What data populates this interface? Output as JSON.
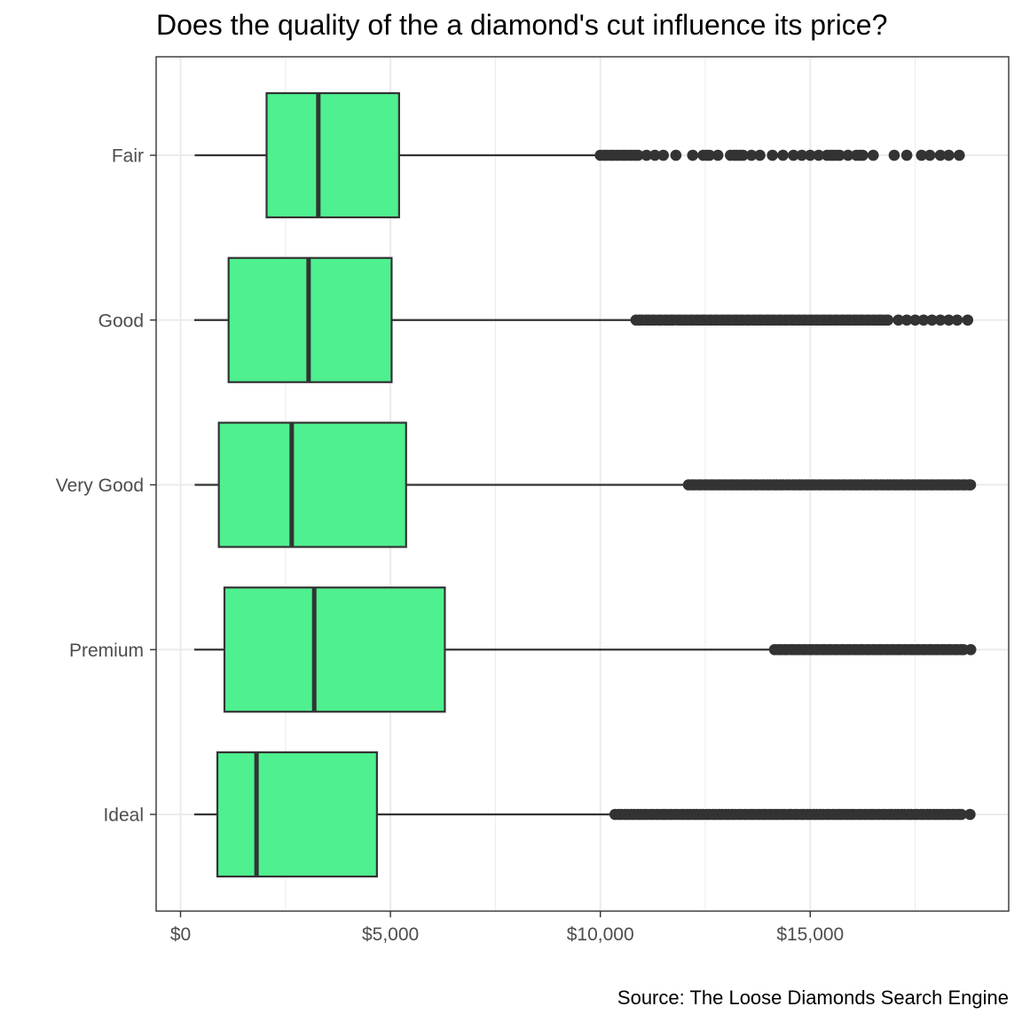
{
  "chart_data": {
    "type": "boxplot",
    "orientation": "horizontal",
    "title": "Does the quality of the a diamond's cut influence its price?",
    "caption": "Source: The Loose Diamonds Search Engine",
    "xlabel": "",
    "ylabel": "",
    "xlim": [
      -600,
      19700
    ],
    "x_ticks": [
      0,
      5000,
      10000,
      15000
    ],
    "x_tick_labels": [
      "$0",
      "$5,000",
      "$10,000",
      "$15,000"
    ],
    "x_minor_ticks": [
      2500,
      7500,
      12500,
      17500
    ],
    "grid": true,
    "legend": "none",
    "colors": {
      "box_fill": "#4EF08F",
      "box_stroke": "#333333",
      "outlier": "#333333",
      "grid": "#ebebeb",
      "panel_border": "#333333"
    },
    "categories": [
      "Fair",
      "Good",
      "Very Good",
      "Premium",
      "Ideal"
    ],
    "series": [
      {
        "category": "Fair",
        "whisker_low": 337,
        "q1": 2050,
        "median": 3282,
        "q3": 5206,
        "whisker_high": 9900,
        "outliers": [
          10000,
          10150,
          10300,
          10450,
          10600,
          10750,
          10900,
          11100,
          11300,
          11500,
          11800,
          12200,
          12450,
          12600,
          12800,
          13100,
          13250,
          13400,
          13600,
          13800,
          14100,
          14350,
          14600,
          14800,
          15000,
          15200,
          15400,
          15550,
          15700,
          15900,
          16100,
          16250,
          16500,
          17000,
          17300,
          17650,
          17850,
          18100,
          18300,
          18550
        ]
      },
      {
        "category": "Good",
        "whisker_low": 327,
        "q1": 1145,
        "median": 3050,
        "q3": 5028,
        "whisker_high": 10800,
        "outliers": [
          10850,
          11000,
          11150,
          11300,
          11450,
          11600,
          11750,
          11900,
          12050,
          12200,
          12350,
          12500,
          12650,
          12800,
          12950,
          13100,
          13250,
          13400,
          13550,
          13700,
          13850,
          14000,
          14150,
          14300,
          14450,
          14600,
          14750,
          14900,
          15050,
          15200,
          15350,
          15500,
          15650,
          15800,
          15950,
          16100,
          16250,
          16400,
          16550,
          16700,
          16850,
          17100,
          17300,
          17500,
          17700,
          17900,
          18100,
          18300,
          18500,
          18750
        ]
      },
      {
        "category": "Very Good",
        "whisker_low": 336,
        "q1": 912,
        "median": 2648,
        "q3": 5373,
        "whisker_high": 12100,
        "outliers": [
          12100,
          12250,
          12400,
          12550,
          12700,
          12850,
          13000,
          13150,
          13300,
          13450,
          13600,
          13750,
          13900,
          14050,
          14200,
          14350,
          14500,
          14650,
          14800,
          14950,
          15100,
          15250,
          15400,
          15550,
          15700,
          15850,
          16000,
          16150,
          16300,
          16450,
          16600,
          16750,
          16900,
          17050,
          17200,
          17350,
          17500,
          17650,
          17800,
          17950,
          18100,
          18250,
          18400,
          18550,
          18700,
          18818
        ]
      },
      {
        "category": "Premium",
        "whisker_low": 326,
        "q1": 1046,
        "median": 3185,
        "q3": 6296,
        "whisker_high": 14100,
        "outliers": [
          14150,
          14300,
          14450,
          14600,
          14750,
          14900,
          15050,
          15200,
          15350,
          15500,
          15650,
          15800,
          15950,
          16100,
          16250,
          16400,
          16550,
          16700,
          16850,
          17000,
          17150,
          17300,
          17450,
          17600,
          17750,
          17900,
          18050,
          18200,
          18350,
          18500,
          18650,
          18823
        ]
      },
      {
        "category": "Ideal",
        "whisker_low": 326,
        "q1": 878,
        "median": 1810,
        "q3": 4678,
        "whisker_high": 10300,
        "outliers": [
          10350,
          10500,
          10650,
          10800,
          10950,
          11100,
          11250,
          11400,
          11550,
          11700,
          11850,
          12000,
          12150,
          12300,
          12450,
          12600,
          12750,
          12900,
          13050,
          13200,
          13350,
          13500,
          13650,
          13800,
          13950,
          14100,
          14250,
          14400,
          14550,
          14700,
          14850,
          15000,
          15150,
          15300,
          15450,
          15600,
          15750,
          15900,
          16050,
          16200,
          16350,
          16500,
          16650,
          16800,
          16950,
          17100,
          17250,
          17400,
          17550,
          17700,
          17850,
          18000,
          18150,
          18300,
          18450,
          18600,
          18806
        ]
      }
    ]
  }
}
